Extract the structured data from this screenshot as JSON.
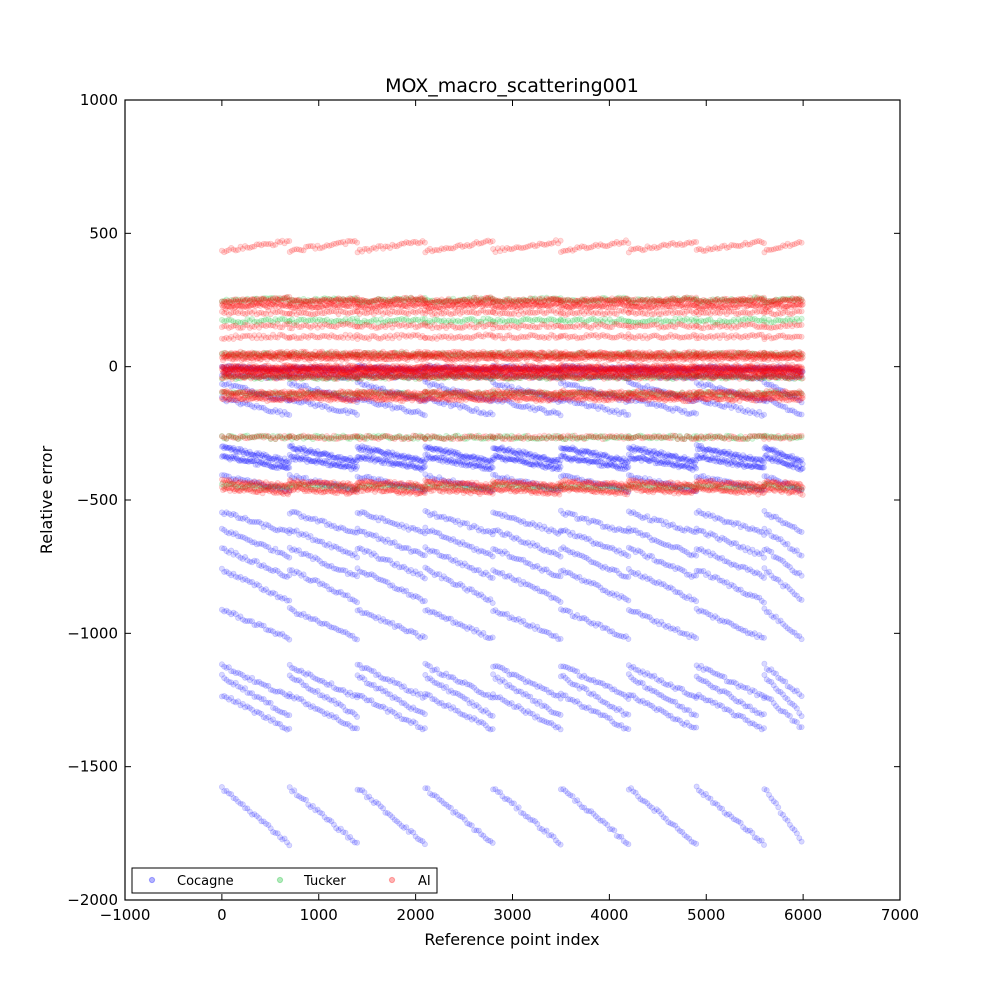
{
  "chart_data": {
    "type": "scatter",
    "title": "MOX_macro_scattering001",
    "xlabel": "Reference point index",
    "ylabel": "Relative error",
    "xlim": [
      -1000,
      7000
    ],
    "ylim": [
      -2000,
      1000
    ],
    "xticks": [
      -1000,
      0,
      1000,
      2000,
      3000,
      4000,
      5000,
      6000,
      7000
    ],
    "yticks": [
      1000,
      500,
      0,
      -500,
      -1000,
      -1500,
      -2000
    ],
    "xtick_labels": [
      "−1000",
      "0",
      "1000",
      "2000",
      "3000",
      "4000",
      "5000",
      "6000",
      "7000"
    ],
    "ytick_labels": [
      "1000",
      "500",
      "0",
      "−500",
      "−1000",
      "−1500",
      "−2000"
    ],
    "grid": false,
    "legend_placement": "lower-left",
    "legend_columns": 3,
    "marker_alpha": 0.15,
    "x_extent": [
      0,
      6000
    ],
    "segment_boundaries": [
      0,
      700,
      1400,
      2100,
      2800,
      3500,
      4200,
      4900,
      5600,
      6000
    ],
    "series": [
      {
        "name": "Cocagne",
        "color": "#0000ff",
        "bands": [
          {
            "start": -2,
            "slope": -8,
            "density": 2
          },
          {
            "start": -30,
            "slope": -10,
            "density": 1
          },
          {
            "start": -60,
            "slope": -70,
            "density": 1
          },
          {
            "start": -120,
            "slope": -60,
            "density": 1
          },
          {
            "start": -300,
            "slope": -55,
            "density": 2
          },
          {
            "start": -335,
            "slope": -45,
            "density": 2
          },
          {
            "start": -410,
            "slope": -55,
            "density": 1
          },
          {
            "start": -545,
            "slope": -80,
            "density": 1
          },
          {
            "start": -610,
            "slope": -100,
            "density": 1
          },
          {
            "start": -680,
            "slope": -110,
            "density": 1
          },
          {
            "start": -760,
            "slope": -120,
            "density": 1
          },
          {
            "start": -910,
            "slope": -110,
            "density": 1
          },
          {
            "start": -1120,
            "slope": -120,
            "density": 1
          },
          {
            "start": -1160,
            "slope": -150,
            "density": 1
          },
          {
            "start": -1230,
            "slope": -130,
            "density": 1
          },
          {
            "start": -1580,
            "slope": -210,
            "density": 1
          }
        ]
      },
      {
        "name": "Tucker",
        "color": "#00bb22",
        "bands": [
          {
            "start": 245,
            "slope": 10,
            "density": 1
          },
          {
            "start": 170,
            "slope": 5,
            "density": 1
          },
          {
            "start": 45,
            "slope": 0,
            "density": 1
          },
          {
            "start": -40,
            "slope": 0,
            "density": 1
          },
          {
            "start": -100,
            "slope": -5,
            "density": 1
          },
          {
            "start": -265,
            "slope": 0,
            "density": 1
          },
          {
            "start": -445,
            "slope": -10,
            "density": 1
          }
        ]
      },
      {
        "name": "AI",
        "color": "#ff0000",
        "bands": [
          {
            "start": 435,
            "slope": 35,
            "density": 1
          },
          {
            "start": 245,
            "slope": 10,
            "density": 2
          },
          {
            "start": 225,
            "slope": 10,
            "density": 2
          },
          {
            "start": 200,
            "slope": 5,
            "density": 1
          },
          {
            "start": 150,
            "slope": 5,
            "density": 1
          },
          {
            "start": 110,
            "slope": 5,
            "density": 1
          },
          {
            "start": 50,
            "slope": 0,
            "density": 2
          },
          {
            "start": 35,
            "slope": 0,
            "density": 2
          },
          {
            "start": 0,
            "slope": 0,
            "density": 3
          },
          {
            "start": -15,
            "slope": 0,
            "density": 3
          },
          {
            "start": -35,
            "slope": 0,
            "density": 2
          },
          {
            "start": -95,
            "slope": -5,
            "density": 2
          },
          {
            "start": -115,
            "slope": -5,
            "density": 2
          },
          {
            "start": -265,
            "slope": 0,
            "density": 1
          },
          {
            "start": -430,
            "slope": -15,
            "density": 2
          },
          {
            "start": -455,
            "slope": -15,
            "density": 2
          }
        ]
      }
    ]
  }
}
